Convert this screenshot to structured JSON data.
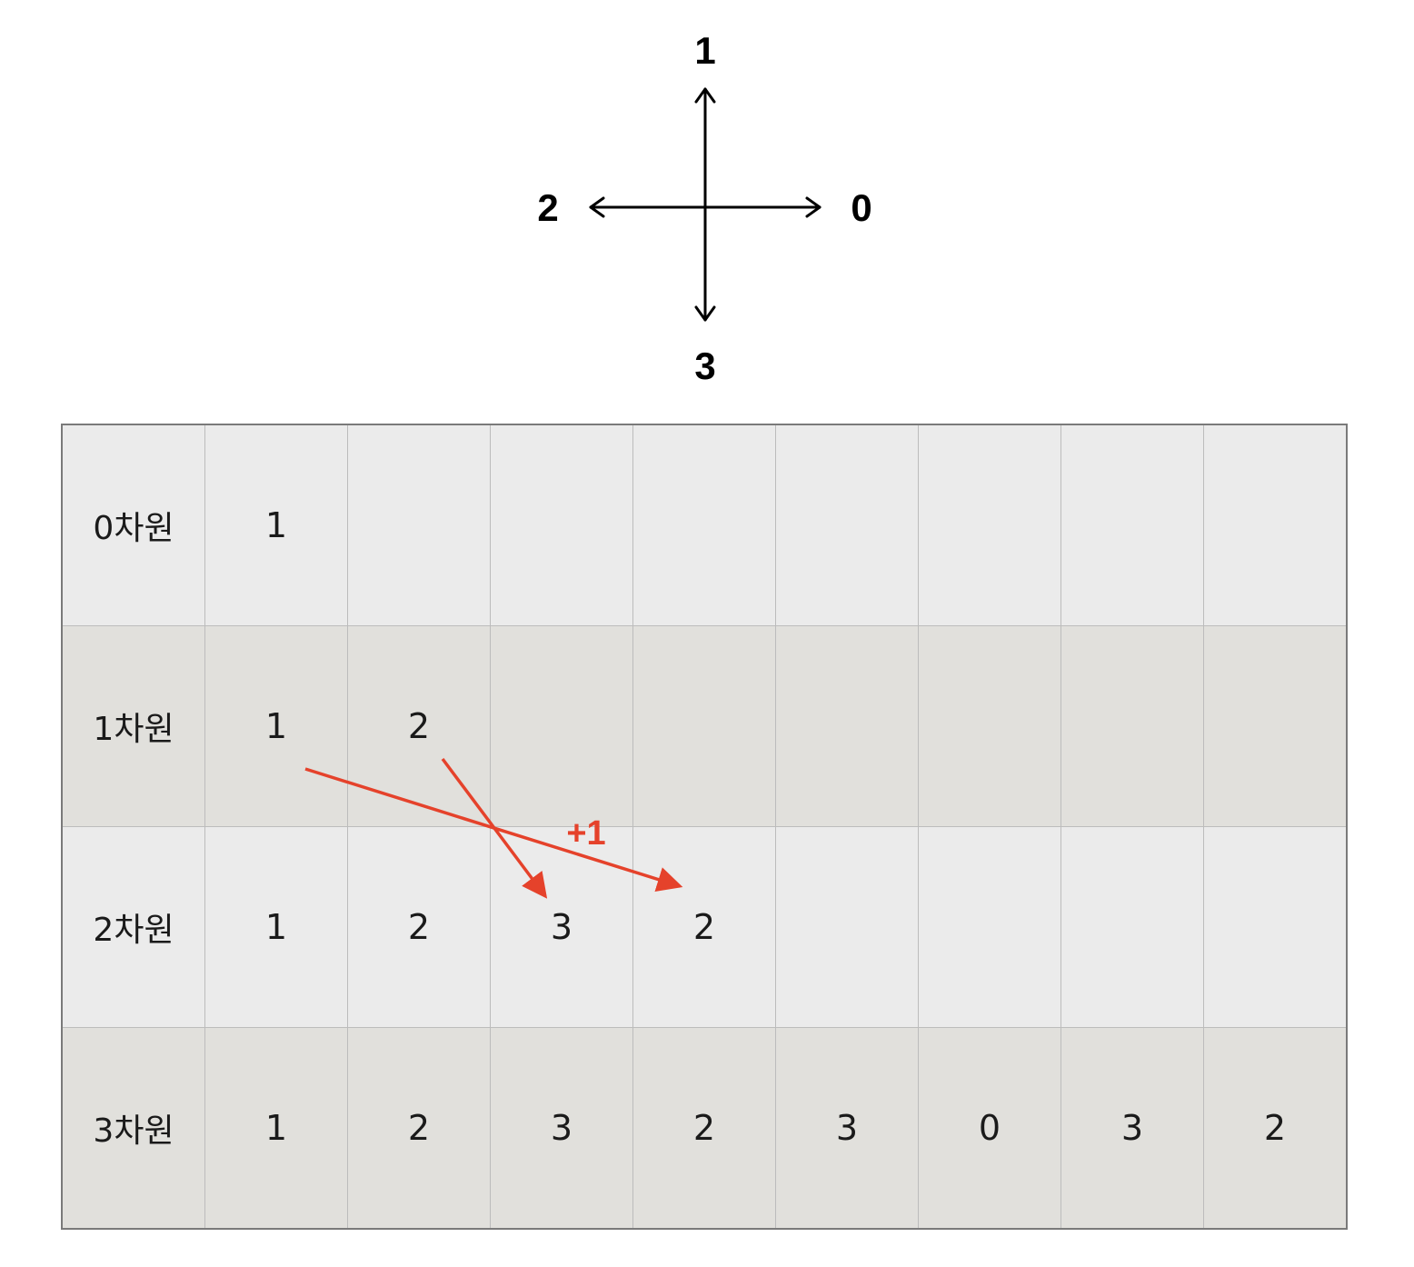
{
  "compass": {
    "up": "1",
    "right": "0",
    "left": "2",
    "down": "3"
  },
  "table": {
    "rows": [
      {
        "label": "0차원",
        "cells": [
          "1",
          "",
          "",
          "",
          "",
          "",
          "",
          ""
        ]
      },
      {
        "label": "1차원",
        "cells": [
          "1",
          "2",
          "",
          "",
          "",
          "",
          "",
          ""
        ]
      },
      {
        "label": "2차원",
        "cells": [
          "1",
          "2",
          "3",
          "2",
          "",
          "",
          "",
          ""
        ]
      },
      {
        "label": "3차원",
        "cells": [
          "1",
          "2",
          "3",
          "2",
          "3",
          "0",
          "3",
          "2"
        ]
      }
    ]
  },
  "annotation": {
    "label": "+1",
    "color": "#e5422b"
  },
  "colors": {
    "row_light": "#ebebeb",
    "row_dark": "#e1e0dc",
    "grid_line": "#bcbcbc",
    "border": "#7a7a7a"
  }
}
